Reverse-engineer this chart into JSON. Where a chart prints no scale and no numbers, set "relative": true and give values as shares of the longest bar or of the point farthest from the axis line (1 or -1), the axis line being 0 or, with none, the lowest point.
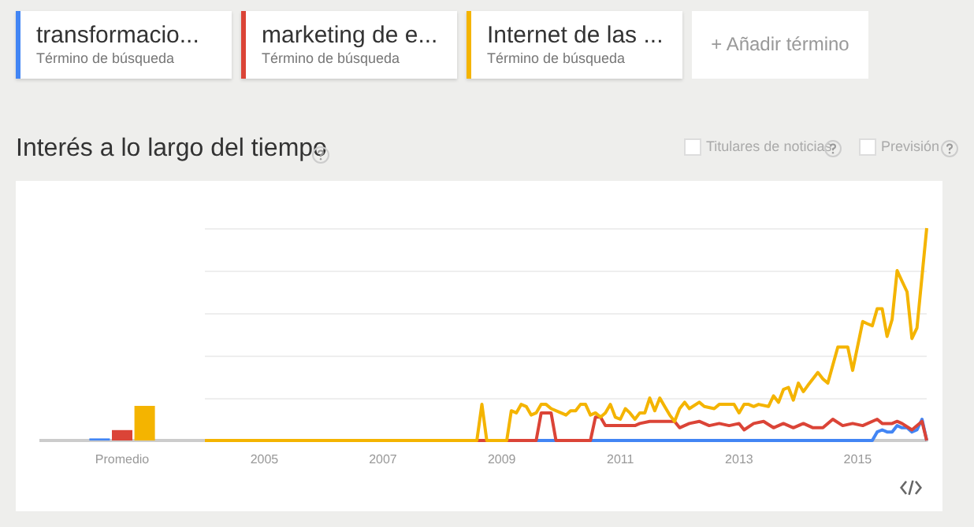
{
  "chart_data": [
    {
      "type": "bar",
      "relative": true,
      "categories": [
        "Promedio"
      ],
      "series": [
        {
          "color": "#4285f4",
          "values": [
            0.06
          ]
        },
        {
          "color": "#db4437",
          "values": [
            0.3
          ]
        },
        {
          "color": "#f4b400",
          "values": [
            1
          ]
        }
      ]
    },
    {
      "type": "line",
      "relative": true,
      "title": "Interés a lo largo del tiempo",
      "legend": "top left",
      "legend_title": "Término de búsqueda",
      "grid": "y",
      "annotations": [
        "+ Añadir término",
        "Titulares de noticias",
        "Previsión"
      ],
      "xlim": [
        "2004-01",
        "2016-03"
      ],
      "xticks": [
        "2005",
        "2007",
        "2009",
        "2011",
        "2013",
        "2015"
      ],
      "series": [
        {
          "name": "transformacio...",
          "color": "#4285f4",
          "x": [
            "2004-01",
            "2015-04",
            "2015-05",
            "2015-06",
            "2015-07",
            "2015-08",
            "2015-09",
            "2015-10",
            "2015-11",
            "2015-12",
            "2016-01",
            "2016-02",
            "2016-03"
          ],
          "values": [
            0,
            0,
            0.04,
            0.05,
            0.04,
            0.04,
            0.07,
            0.06,
            0.06,
            0.04,
            0.05,
            0.1,
            0
          ]
        },
        {
          "name": "marketing de e...",
          "color": "#db4437",
          "x": [
            "2004-01",
            "2009-08",
            "2009-09",
            "2009-11",
            "2009-12",
            "2010-07",
            "2010-08",
            "2010-09",
            "2010-10",
            "2011-04",
            "2011-05",
            "2011-07",
            "2011-12",
            "2012-01",
            "2012-03",
            "2012-05",
            "2012-07",
            "2012-09",
            "2012-11",
            "2013-01",
            "2013-02",
            "2013-04",
            "2013-06",
            "2013-08",
            "2013-10",
            "2013-12",
            "2014-02",
            "2014-04",
            "2014-06",
            "2014-08",
            "2014-10",
            "2014-12",
            "2015-02",
            "2015-05",
            "2015-06",
            "2015-08",
            "2015-09",
            "2015-10",
            "2015-12",
            "2016-02",
            "2016-03"
          ],
          "values": [
            0,
            0,
            0.13,
            0.13,
            0,
            0,
            0.11,
            0.11,
            0.07,
            0.07,
            0.08,
            0.09,
            0.09,
            0.06,
            0.08,
            0.09,
            0.07,
            0.08,
            0.07,
            0.08,
            0.05,
            0.08,
            0.09,
            0.06,
            0.08,
            0.06,
            0.08,
            0.06,
            0.06,
            0.1,
            0.07,
            0.08,
            0.07,
            0.1,
            0.08,
            0.08,
            0.09,
            0.08,
            0.05,
            0.09,
            0
          ]
        },
        {
          "name": "Internet de las ...",
          "color": "#f4b400",
          "x": [
            "2004-01",
            "2008-08",
            "2008-09",
            "2008-10",
            "2009-02",
            "2009-03",
            "2009-04",
            "2009-05",
            "2009-06",
            "2009-07",
            "2009-08",
            "2009-09",
            "2009-10",
            "2009-11",
            "2010-01",
            "2010-02",
            "2010-03",
            "2010-04",
            "2010-05",
            "2010-06",
            "2010-07",
            "2010-08",
            "2010-09",
            "2010-10",
            "2010-11",
            "2010-12",
            "2011-01",
            "2011-02",
            "2011-03",
            "2011-04",
            "2011-05",
            "2011-06",
            "2011-07",
            "2011-08",
            "2011-09",
            "2011-10",
            "2011-11",
            "2011-12",
            "2012-01",
            "2012-02",
            "2012-03",
            "2012-05",
            "2012-06",
            "2012-08",
            "2012-09",
            "2012-10",
            "2012-12",
            "2013-01",
            "2013-02",
            "2013-03",
            "2013-04",
            "2013-05",
            "2013-07",
            "2013-08",
            "2013-09",
            "2013-10",
            "2013-11",
            "2013-12",
            "2014-01",
            "2014-02",
            "2014-03",
            "2014-05",
            "2014-06",
            "2014-07",
            "2014-09",
            "2014-10",
            "2014-11",
            "2014-12",
            "2015-02",
            "2015-03",
            "2015-04",
            "2015-05",
            "2015-06",
            "2015-07",
            "2015-08",
            "2015-09",
            "2015-10",
            "2015-11",
            "2015-12",
            "2016-01",
            "2016-03"
          ],
          "values": [
            0,
            0,
            0.17,
            0,
            0,
            0.14,
            0.13,
            0.17,
            0.16,
            0.12,
            0.13,
            0.17,
            0.17,
            0.15,
            0.13,
            0.12,
            0.14,
            0.14,
            0.17,
            0.17,
            0.12,
            0.13,
            0.11,
            0.13,
            0.17,
            0.11,
            0.1,
            0.15,
            0.13,
            0.1,
            0.13,
            0.13,
            0.2,
            0.14,
            0.2,
            0.16,
            0.12,
            0.09,
            0.15,
            0.18,
            0.15,
            0.18,
            0.16,
            0.15,
            0.17,
            0.17,
            0.17,
            0.13,
            0.17,
            0.17,
            0.16,
            0.17,
            0.16,
            0.21,
            0.18,
            0.24,
            0.25,
            0.19,
            0.27,
            0.23,
            0.26,
            0.32,
            0.29,
            0.27,
            0.44,
            0.44,
            0.44,
            0.33,
            0.56,
            0.55,
            0.54,
            0.62,
            0.62,
            0.49,
            0.57,
            0.8,
            0.75,
            0.7,
            0.48,
            0.53,
            1
          ]
        }
      ]
    }
  ]
}
